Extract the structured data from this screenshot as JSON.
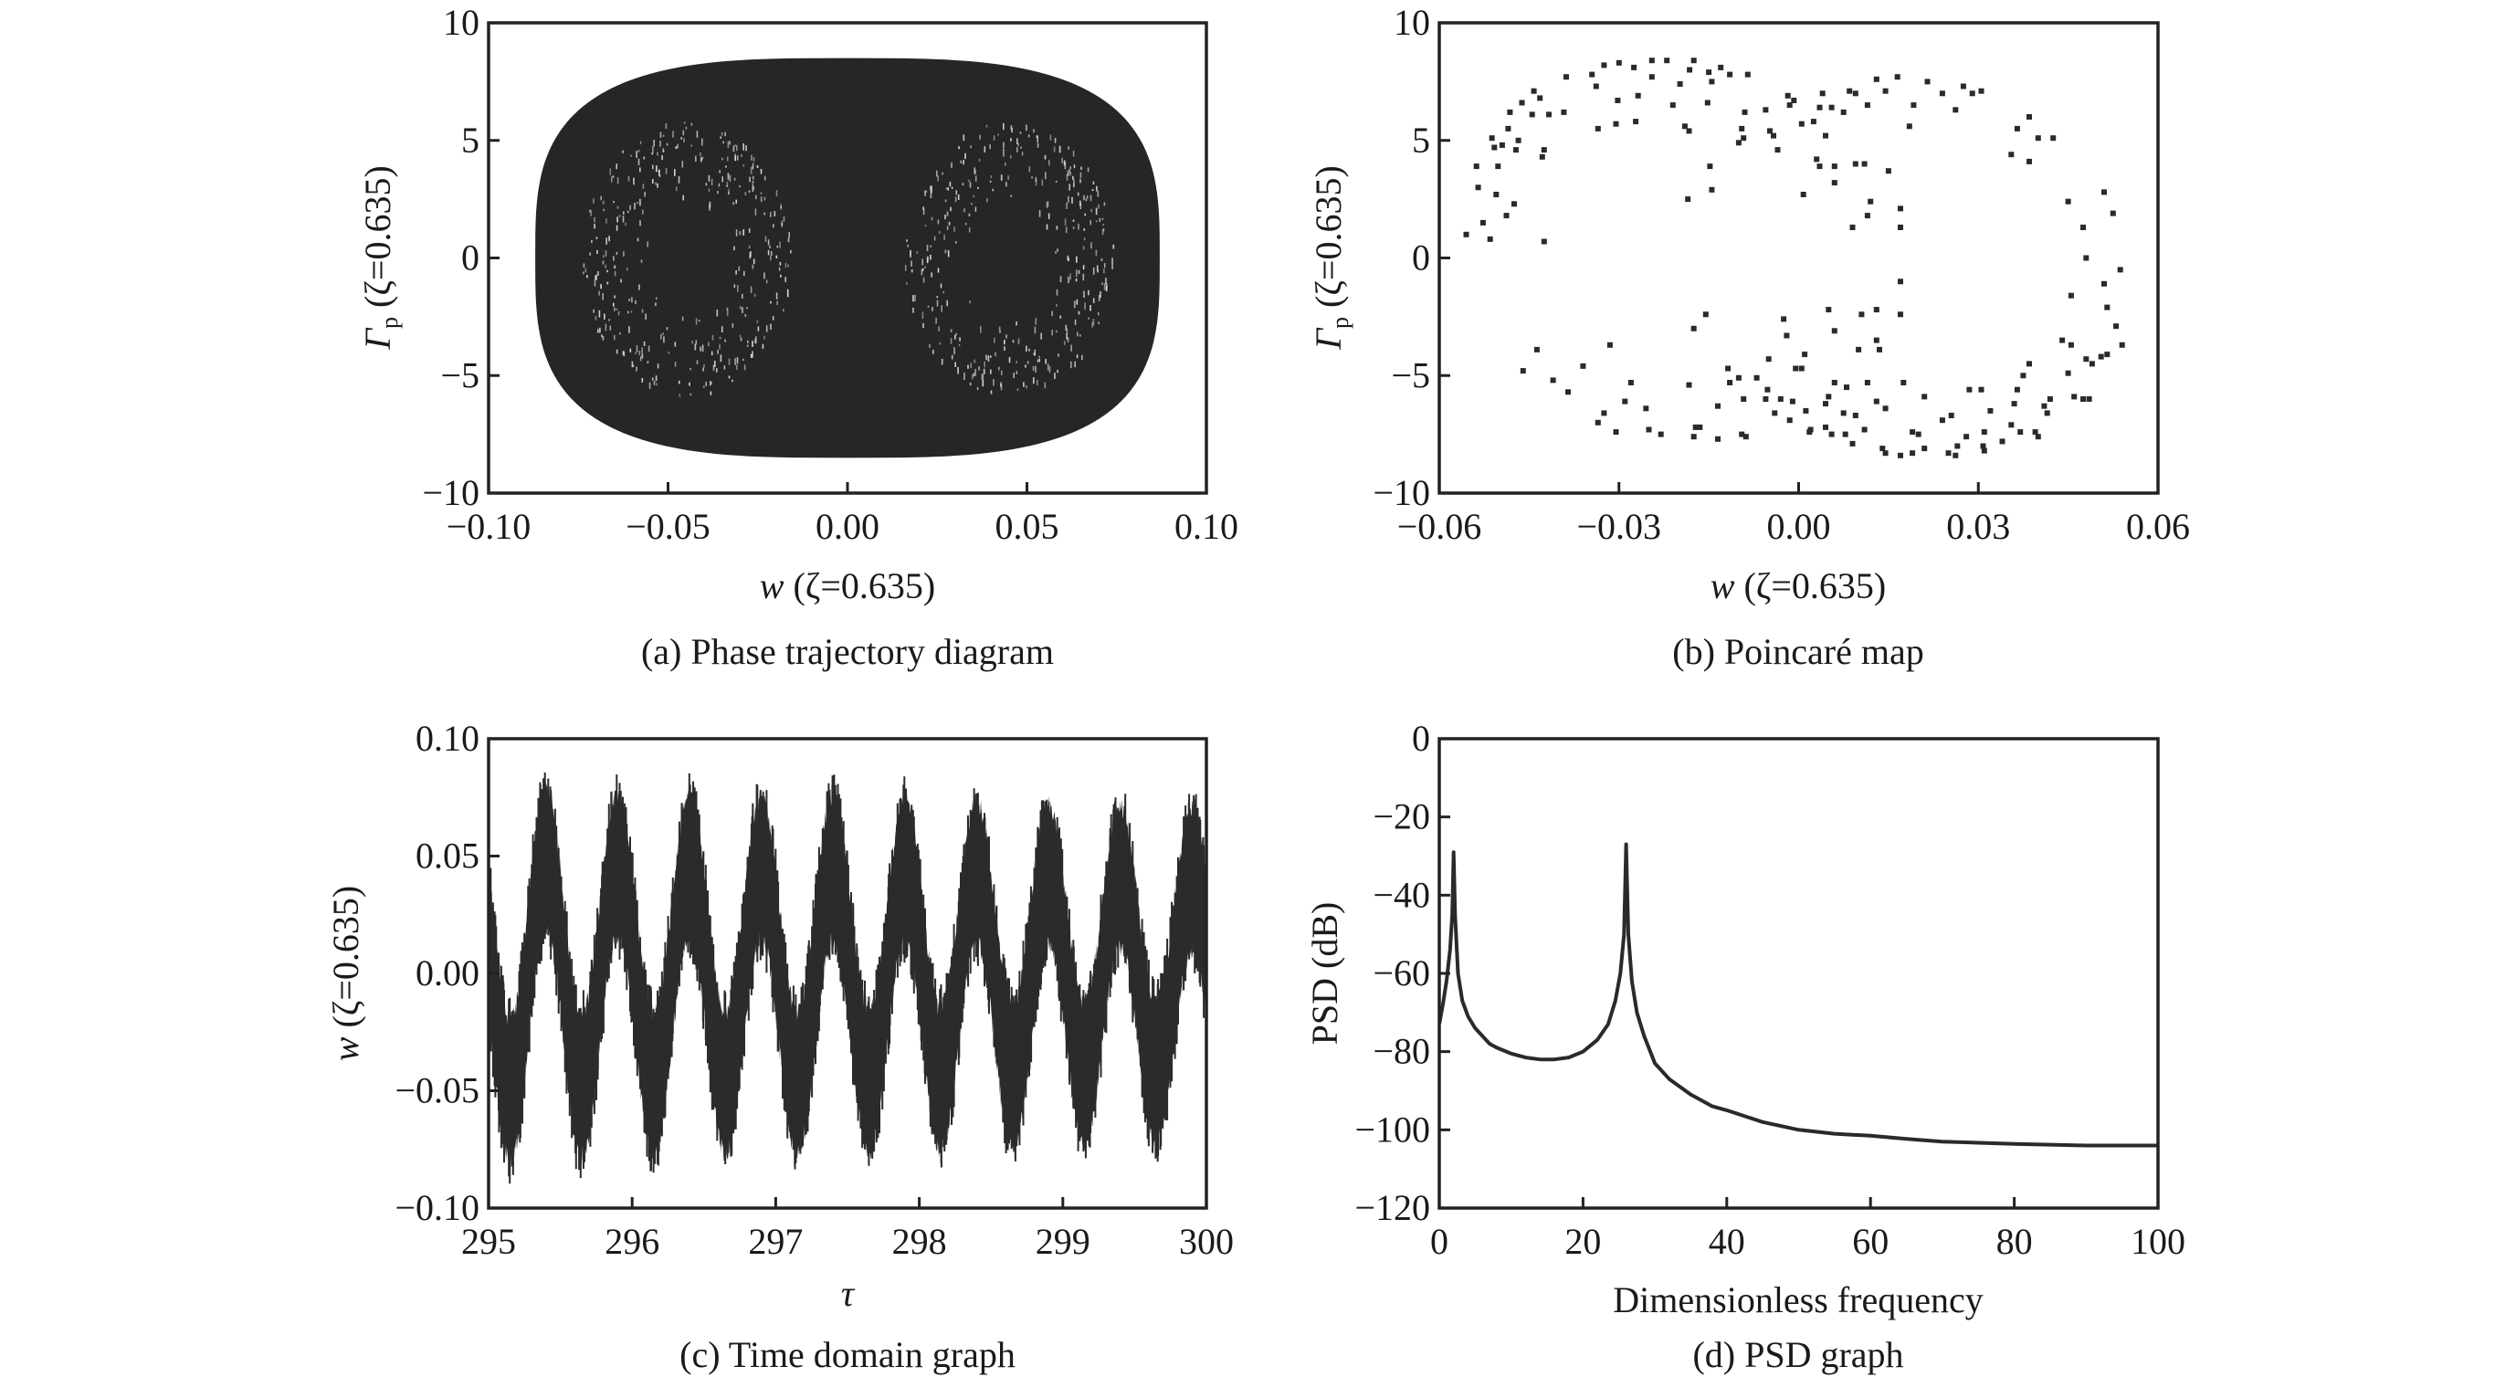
{
  "colors": {
    "ink": "#222222",
    "fill": "#262626",
    "background": "#ffffff"
  },
  "chart_data": [
    {
      "id": "a",
      "type": "area",
      "title": "",
      "caption": "(a) Phase trajectory diagram",
      "xlabel_var": "w",
      "xlabel_rest": " (ζ=0.635)",
      "ylabel_var": "Γ",
      "ylabel_sub": "p",
      "ylabel_rest": " (ζ=0.635)",
      "xlim": [
        -0.1,
        0.1
      ],
      "ylim": [
        -10,
        10
      ],
      "xticks": [
        -0.1,
        -0.05,
        0.0,
        0.05,
        0.1
      ],
      "xtick_labels": [
        "−0.10",
        "−0.05",
        "0.00",
        "0.05",
        "0.10"
      ],
      "yticks": [
        -10,
        -5,
        0,
        5,
        10
      ],
      "ytick_labels": [
        "−10",
        "−5",
        "0",
        "5",
        "10"
      ],
      "grid": false,
      "envelope": {
        "w_max": 0.087,
        "gamma_max": 8.5,
        "description_shape": "filled dense rounded-rectangle trajectory region"
      }
    },
    {
      "id": "b",
      "type": "scatter",
      "caption": "(b) Poincaré map",
      "xlabel_var": "w",
      "xlabel_rest": " (ζ=0.635)",
      "ylabel_var": "Γ",
      "ylabel_sub": "p",
      "ylabel_rest": " (ζ=0.635)",
      "xlim": [
        -0.06,
        0.06
      ],
      "ylim": [
        -10,
        10
      ],
      "xticks": [
        -0.06,
        -0.03,
        0.0,
        0.03,
        0.06
      ],
      "xtick_labels": [
        "−0.06",
        "−0.03",
        "0.00",
        "0.03",
        "0.06"
      ],
      "yticks": [
        -10,
        -5,
        0,
        5,
        10
      ],
      "ytick_labels": [
        "−10",
        "−5",
        "0",
        "5",
        "10"
      ],
      "grid": false,
      "points": [
        [
          -0.0555,
          1.0
        ],
        [
          -0.0527,
          1.5
        ],
        [
          -0.0515,
          0.8
        ],
        [
          -0.0535,
          3.0
        ],
        [
          -0.0538,
          3.9
        ],
        [
          -0.0505,
          2.7
        ],
        [
          -0.0502,
          3.9
        ],
        [
          -0.0508,
          4.7
        ],
        [
          -0.0512,
          5.1
        ],
        [
          -0.0495,
          4.8
        ],
        [
          -0.0488,
          1.8
        ],
        [
          -0.0485,
          5.5
        ],
        [
          -0.0475,
          2.3
        ],
        [
          -0.0472,
          4.6
        ],
        [
          -0.0468,
          5.0
        ],
        [
          -0.0482,
          6.2
        ],
        [
          -0.0462,
          6.6
        ],
        [
          -0.0445,
          6.1
        ],
        [
          -0.0442,
          7.1
        ],
        [
          -0.0432,
          6.8
        ],
        [
          -0.0425,
          4.6
        ],
        [
          -0.0428,
          4.3
        ],
        [
          -0.0417,
          6.1
        ],
        [
          -0.0388,
          7.7
        ],
        [
          -0.0392,
          6.2
        ],
        [
          -0.0425,
          0.7
        ],
        [
          -0.0345,
          7.8
        ],
        [
          -0.0338,
          7.3
        ],
        [
          -0.0335,
          5.5
        ],
        [
          -0.0325,
          8.2
        ],
        [
          -0.03,
          8.3
        ],
        [
          -0.0302,
          6.7
        ],
        [
          -0.0305,
          5.7
        ],
        [
          -0.0275,
          8.1
        ],
        [
          -0.0268,
          6.9
        ],
        [
          -0.0272,
          5.8
        ],
        [
          -0.0245,
          8.4
        ],
        [
          -0.0245,
          7.7
        ],
        [
          -0.022,
          8.4
        ],
        [
          -0.021,
          6.5
        ],
        [
          -0.0198,
          7.4
        ],
        [
          -0.019,
          5.6
        ],
        [
          -0.0182,
          8.0
        ],
        [
          -0.0175,
          8.4
        ],
        [
          -0.0183,
          5.4
        ],
        [
          -0.015,
          7.9
        ],
        [
          -0.0152,
          6.6
        ],
        [
          -0.0148,
          3.9
        ],
        [
          -0.0145,
          2.9
        ],
        [
          -0.0185,
          2.5
        ],
        [
          -0.0145,
          7.5
        ],
        [
          -0.013,
          8.1
        ],
        [
          -0.0115,
          7.8
        ],
        [
          -0.0085,
          7.8
        ],
        [
          -0.009,
          6.2
        ],
        [
          -0.0095,
          5.5
        ],
        [
          -0.01,
          4.9
        ],
        [
          -0.0092,
          5.1
        ],
        [
          -0.0055,
          6.3
        ],
        [
          -0.0048,
          5.4
        ],
        [
          -0.0042,
          5.2
        ],
        [
          -0.0035,
          4.6
        ],
        [
          -0.0018,
          6.9
        ],
        [
          -0.0015,
          6.5
        ],
        [
          -0.0008,
          6.7
        ],
        [
          0.0005,
          5.7
        ],
        [
          0.0025,
          5.8
        ],
        [
          0.0035,
          6.4
        ],
        [
          0.0055,
          6.4
        ],
        [
          0.004,
          7.0
        ],
        [
          0.0045,
          5.2
        ],
        [
          0.0085,
          7.1
        ],
        [
          0.0075,
          6.2
        ],
        [
          0.0115,
          6.5
        ],
        [
          0.0095,
          7.0
        ],
        [
          0.013,
          7.6
        ],
        [
          0.0145,
          7.1
        ],
        [
          0.0165,
          7.7
        ],
        [
          0.0185,
          5.6
        ],
        [
          0.0192,
          6.5
        ],
        [
          0.0215,
          7.5
        ],
        [
          0.024,
          7.0
        ],
        [
          0.0262,
          6.3
        ],
        [
          0.0275,
          7.3
        ],
        [
          0.029,
          7.0
        ],
        [
          0.0305,
          7.1
        ],
        [
          0.003,
          4.2
        ],
        [
          0.0035,
          3.9
        ],
        [
          0.006,
          3.9
        ],
        [
          0.006,
          3.2
        ],
        [
          0.0095,
          4.0
        ],
        [
          0.011,
          4.0
        ],
        [
          0.015,
          3.7
        ],
        [
          0.012,
          2.4
        ],
        [
          0.0115,
          1.8
        ],
        [
          0.009,
          1.3
        ],
        [
          0.0008,
          2.7
        ],
        [
          0.017,
          2.1
        ],
        [
          0.017,
          1.3
        ],
        [
          0.0355,
          4.4
        ],
        [
          0.0365,
          5.5
        ],
        [
          0.0385,
          4.1
        ],
        [
          0.0385,
          6.0
        ],
        [
          0.04,
          5.1
        ],
        [
          0.0425,
          5.1
        ],
        [
          0.045,
          2.4
        ],
        [
          0.0475,
          1.3
        ],
        [
          0.051,
          2.8
        ],
        [
          0.0525,
          1.9
        ],
        [
          0.048,
          0.0
        ],
        [
          0.0537,
          -0.5
        ],
        [
          0.051,
          -1.1
        ],
        [
          0.0455,
          -1.6
        ],
        [
          0.0515,
          -2.1
        ],
        [
          0.053,
          -2.9
        ],
        [
          0.044,
          -3.5
        ],
        [
          0.0455,
          -3.7
        ],
        [
          0.054,
          -3.7
        ],
        [
          0.048,
          -4.3
        ],
        [
          0.049,
          -4.5
        ],
        [
          0.0505,
          -4.2
        ],
        [
          0.0515,
          -4.1
        ],
        [
          0.045,
          -4.9
        ],
        [
          0.046,
          -5.9
        ],
        [
          0.0475,
          -6.0
        ],
        [
          0.0485,
          -6.0
        ],
        [
          0.017,
          -1.0
        ],
        [
          0.017,
          -2.4
        ],
        [
          0.013,
          -2.2
        ],
        [
          0.0105,
          -2.4
        ],
        [
          0.005,
          -2.2
        ],
        [
          0.006,
          -3.1
        ],
        [
          0.013,
          -3.5
        ],
        [
          0.0135,
          -3.9
        ],
        [
          0.01,
          -3.9
        ],
        [
          0.0175,
          -5.3
        ],
        [
          0.021,
          -5.9
        ],
        [
          0.013,
          -6.1
        ],
        [
          0.0145,
          -6.4
        ],
        [
          0.0115,
          -5.3
        ],
        [
          0.008,
          -5.5
        ],
        [
          0.006,
          -5.3
        ],
        [
          0.005,
          -5.9
        ],
        [
          0.0045,
          -6.2
        ],
        [
          0.0075,
          -6.6
        ],
        [
          0.0095,
          -6.7
        ],
        [
          0.0045,
          -7.2
        ],
        [
          0.0055,
          -7.5
        ],
        [
          0.002,
          -7.3
        ],
        [
          0.0078,
          -7.5
        ],
        [
          0.009,
          -7.9
        ],
        [
          0.011,
          -7.3
        ],
        [
          0.014,
          -8.1
        ],
        [
          0.0145,
          -8.3
        ],
        [
          0.017,
          -8.4
        ],
        [
          0.019,
          -7.4
        ],
        [
          0.02,
          -7.5
        ],
        [
          0.019,
          -8.3
        ],
        [
          0.021,
          -8.1
        ],
        [
          0.024,
          -6.9
        ],
        [
          0.0255,
          -6.7
        ],
        [
          0.025,
          -8.3
        ],
        [
          0.0262,
          -8.4
        ],
        [
          0.0265,
          -8.0
        ],
        [
          0.028,
          -7.6
        ],
        [
          0.0285,
          -5.6
        ],
        [
          0.0305,
          -5.6
        ],
        [
          0.031,
          -7.4
        ],
        [
          0.0308,
          -8.0
        ],
        [
          0.031,
          -8.2
        ],
        [
          0.032,
          -6.5
        ],
        [
          0.034,
          -7.8
        ],
        [
          0.0355,
          -7.1
        ],
        [
          0.036,
          -6.2
        ],
        [
          0.037,
          -7.4
        ],
        [
          0.0365,
          -5.6
        ],
        [
          0.0375,
          -5.0
        ],
        [
          0.0385,
          -4.5
        ],
        [
          0.0395,
          -7.4
        ],
        [
          0.04,
          -7.6
        ],
        [
          0.041,
          -6.3
        ],
        [
          0.0415,
          -6.6
        ],
        [
          0.042,
          -6.0
        ],
        [
          -0.046,
          -4.8
        ],
        [
          -0.0437,
          -3.9
        ],
        [
          -0.041,
          -5.2
        ],
        [
          -0.0385,
          -5.7
        ],
        [
          -0.036,
          -4.6
        ],
        [
          -0.0315,
          -3.7
        ],
        [
          -0.0335,
          -7.0
        ],
        [
          -0.0325,
          -6.6
        ],
        [
          -0.028,
          -5.3
        ],
        [
          -0.029,
          -6.1
        ],
        [
          -0.0305,
          -7.4
        ],
        [
          -0.0255,
          -6.4
        ],
        [
          -0.025,
          -7.3
        ],
        [
          -0.023,
          -7.5
        ],
        [
          -0.0183,
          -5.4
        ],
        [
          -0.0175,
          -7.6
        ],
        [
          -0.0172,
          -7.2
        ],
        [
          -0.0165,
          -7.2
        ],
        [
          -0.0175,
          -3.0
        ],
        [
          -0.0155,
          -2.4
        ],
        [
          -0.0135,
          -6.3
        ],
        [
          -0.0135,
          -7.7
        ],
        [
          -0.0118,
          -4.7
        ],
        [
          -0.0115,
          -5.3
        ],
        [
          -0.01,
          -5.1
        ],
        [
          -0.0092,
          -6.0
        ],
        [
          -0.0095,
          -7.5
        ],
        [
          -0.0088,
          -7.6
        ],
        [
          -0.007,
          -5.1
        ],
        [
          -0.005,
          -4.3
        ],
        [
          -0.0052,
          -5.6
        ],
        [
          -0.0055,
          -6.0
        ],
        [
          -0.004,
          -6.6
        ],
        [
          -0.003,
          -6.0
        ],
        [
          -0.0025,
          -2.6
        ],
        [
          -0.002,
          -3.3
        ],
        [
          -0.0015,
          -6.9
        ],
        [
          -0.001,
          -6.1
        ],
        [
          -0.0005,
          -4.7
        ],
        [
          0.0005,
          -4.7
        ],
        [
          0.001,
          -4.1
        ],
        [
          0.0012,
          -6.5
        ],
        [
          0.0018,
          -7.4
        ]
      ]
    },
    {
      "id": "c",
      "type": "line",
      "caption": "(c) Time domain graph",
      "xlabel": "τ",
      "ylabel_var": "w",
      "ylabel_rest": " (ζ=0.635)",
      "xlim": [
        295,
        300
      ],
      "ylim": [
        -0.1,
        0.1
      ],
      "xticks": [
        295,
        296,
        297,
        298,
        299,
        300
      ],
      "xtick_labels": [
        "295",
        "296",
        "297",
        "298",
        "299",
        "300"
      ],
      "yticks": [
        -0.1,
        -0.05,
        0.0,
        0.05,
        0.1
      ],
      "ytick_labels": [
        "−0.10",
        "−0.05",
        "0.00",
        "0.05",
        "0.10"
      ],
      "grid": false,
      "signal": {
        "carrier_period": 0.5,
        "first_peak_tau": 295.4,
        "peak_values": [
          0.079,
          0.076,
          0.076,
          0.075,
          0.075,
          0.074,
          0.073,
          0.072,
          0.071,
          0.07
        ],
        "trough_values": [
          -0.08,
          -0.077,
          -0.077,
          -0.077,
          -0.076,
          -0.076,
          -0.074,
          -0.073,
          -0.072,
          -0.071
        ],
        "band_halfwidth": 0.03
      }
    },
    {
      "id": "d",
      "type": "line",
      "caption": "(d) PSD graph",
      "xlabel": "Dimensionless frequency",
      "ylabel": "PSD (dB)",
      "xlim": [
        0,
        100
      ],
      "ylim": [
        -120,
        0
      ],
      "xticks": [
        0,
        20,
        40,
        60,
        80,
        100
      ],
      "xtick_labels": [
        "0",
        "20",
        "40",
        "60",
        "80",
        "100"
      ],
      "yticks": [
        0,
        -20,
        -40,
        -60,
        -80,
        -100,
        -120
      ],
      "ytick_labels": [
        "0",
        "−20",
        "−40",
        "−60",
        "−80",
        "−100",
        "−120"
      ],
      "grid": false,
      "x": [
        0,
        0.5,
        1.0,
        1.5,
        1.8,
        2.0,
        2.2,
        2.6,
        3.2,
        4,
        5,
        6,
        7,
        8,
        10,
        12,
        14,
        16,
        18,
        20,
        22,
        23.5,
        24.5,
        25.2,
        25.7,
        26.0,
        26.3,
        26.8,
        27.5,
        28.5,
        30,
        32,
        35,
        38,
        40,
        45,
        50,
        55,
        60,
        65,
        70,
        75,
        80,
        85,
        90,
        95,
        100
      ],
      "y": [
        -73,
        -68,
        -62,
        -54,
        -45,
        -29,
        -45,
        -60,
        -67,
        -71,
        -74,
        -76,
        -78,
        -79,
        -80.5,
        -81.5,
        -82,
        -82,
        -81.5,
        -80,
        -77,
        -73,
        -67,
        -60,
        -50,
        -27,
        -50,
        -62,
        -70,
        -76,
        -83,
        -87,
        -91,
        -94,
        -95,
        -98,
        -100,
        -101,
        -101.5,
        -102.3,
        -103,
        -103.3,
        -103.6,
        -103.8,
        -104,
        -104,
        -104
      ]
    }
  ]
}
